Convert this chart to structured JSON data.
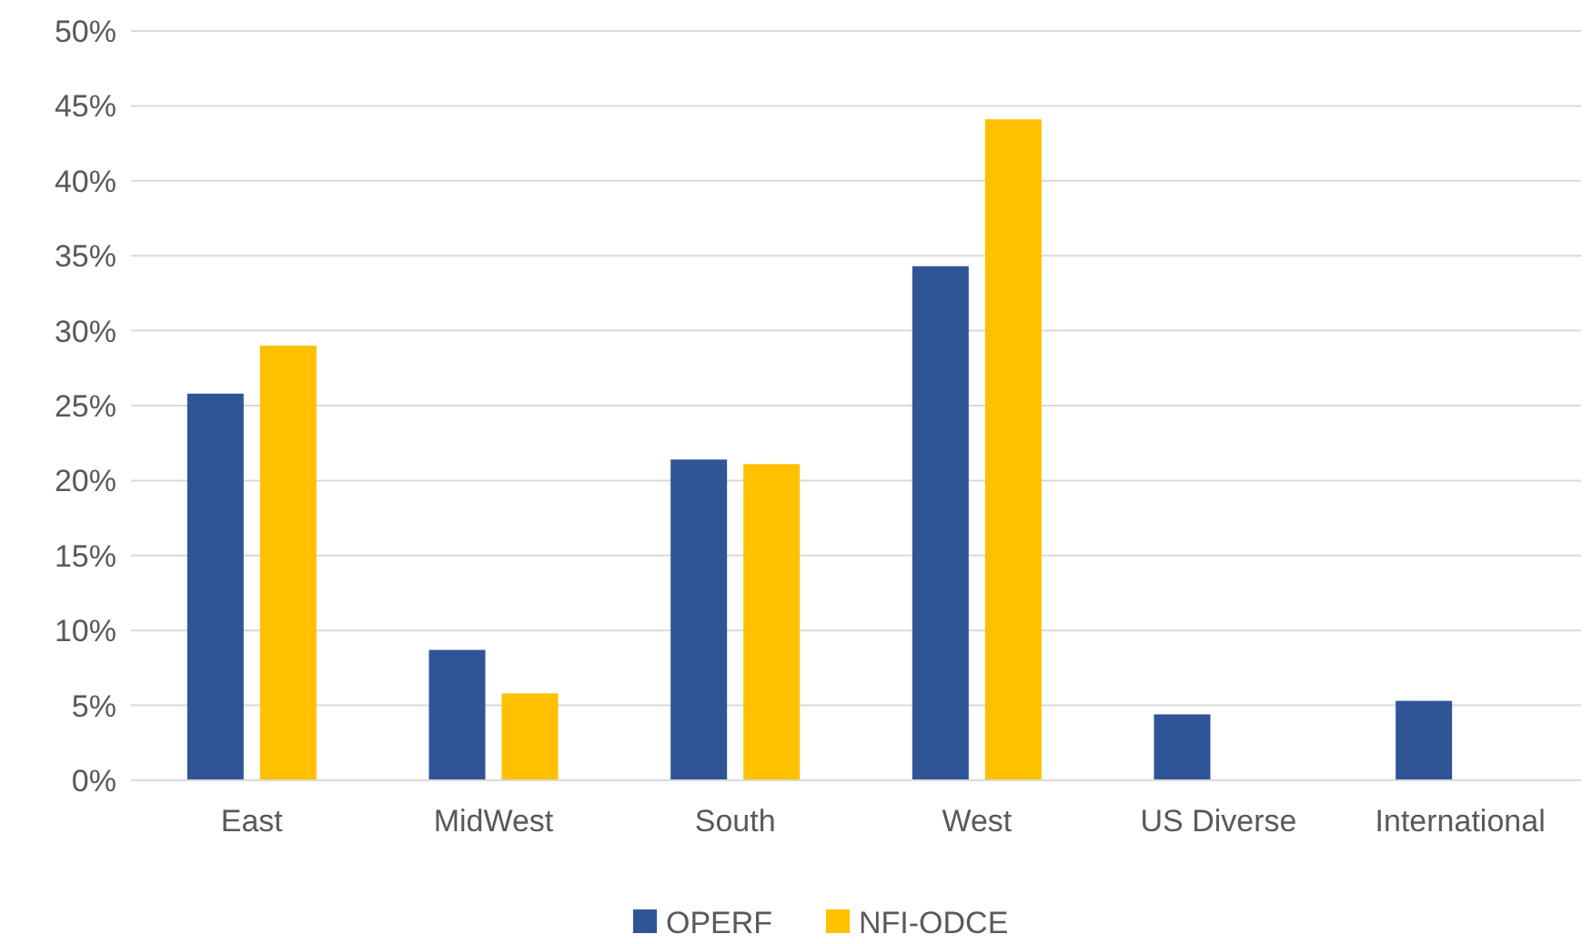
{
  "chart_data": {
    "type": "bar",
    "categories": [
      "East",
      "MidWest",
      "South",
      "West",
      "US Diverse",
      "International"
    ],
    "series": [
      {
        "name": "OPERF",
        "color": "#2f5597",
        "values": [
          25.8,
          8.7,
          21.4,
          34.3,
          4.4,
          5.3
        ]
      },
      {
        "name": "NFI-ODCE",
        "color": "#ffc000",
        "values": [
          29.0,
          5.8,
          21.1,
          44.1,
          null,
          null
        ]
      }
    ],
    "ylim": [
      0,
      50
    ],
    "yticks": [
      {
        "value": 0,
        "label": "0%"
      },
      {
        "value": 5,
        "label": "5%"
      },
      {
        "value": 10,
        "label": "10%"
      },
      {
        "value": 15,
        "label": "15%"
      },
      {
        "value": 20,
        "label": "20%"
      },
      {
        "value": 25,
        "label": "25%"
      },
      {
        "value": 30,
        "label": "30%"
      },
      {
        "value": 35,
        "label": "35%"
      },
      {
        "value": 40,
        "label": "40%"
      },
      {
        "value": 45,
        "label": "45%"
      },
      {
        "value": 50,
        "label": "50%"
      }
    ],
    "grid": "y",
    "legend": "bottom"
  }
}
